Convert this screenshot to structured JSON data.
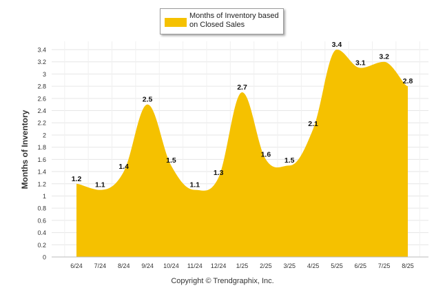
{
  "chart_data": {
    "type": "area",
    "categories": [
      "6/24",
      "7/24",
      "8/24",
      "9/24",
      "10/24",
      "11/24",
      "12/24",
      "1/25",
      "2/25",
      "3/25",
      "4/25",
      "5/25",
      "6/25",
      "7/25",
      "8/25"
    ],
    "series": [
      {
        "name": "Months of Inventory based on Closed Sales",
        "values": [
          1.2,
          1.1,
          1.4,
          2.5,
          1.5,
          1.1,
          1.3,
          2.7,
          1.6,
          1.5,
          2.1,
          3.4,
          3.1,
          3.2,
          2.8
        ],
        "color": "#f5c100"
      }
    ],
    "data_labels": [
      "1.2",
      "1.1",
      "1.4",
      "2.5",
      "1.5",
      "1.1",
      "1.3",
      "2.7",
      "1.6",
      "1.5",
      "2.1",
      "3.4",
      "3.1",
      "3.2",
      "2.8"
    ],
    "ylabel": "Months of Inventory",
    "xlabel": "",
    "ylim": [
      0,
      3.4
    ],
    "yticks": [
      "0",
      "0.2",
      "0.4",
      "0.6",
      "0.8",
      "1",
      "1.2",
      "1.4",
      "1.6",
      "1.8",
      "2",
      "2.2",
      "2.4",
      "2.6",
      "2.8",
      "3",
      "3.2",
      "3.4"
    ],
    "grid": true,
    "legend_position": "top-center"
  },
  "legend": {
    "label": "Months of Inventory based on Closed Sales"
  },
  "footer": {
    "copyright": "Copyright © Trendgraphix, Inc."
  }
}
